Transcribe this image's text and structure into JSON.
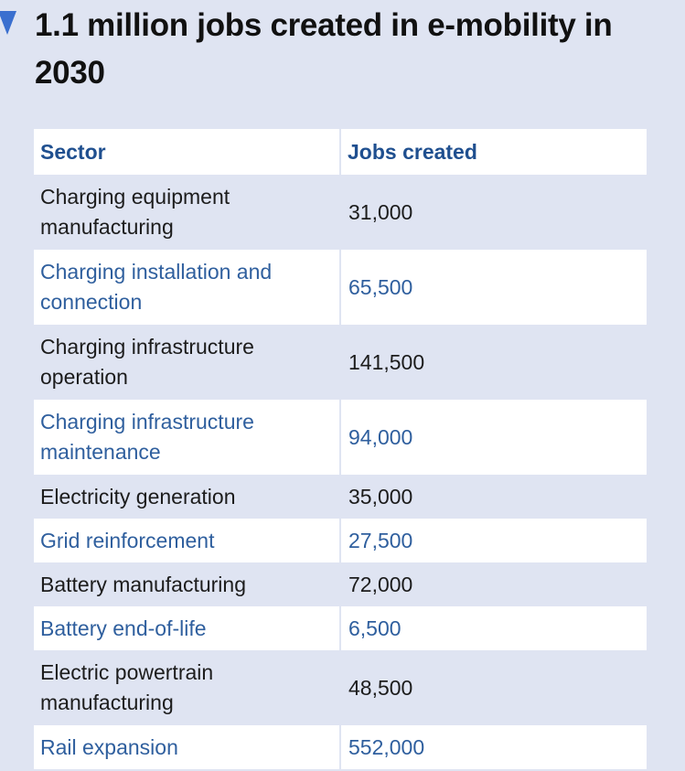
{
  "title": "1.1 million jobs created in e-mobility in 2030",
  "colors": {
    "background": "#dfe4f2",
    "header_text": "#1f4f8f",
    "alt_row_text": "#2f5f9e",
    "marker": "#3a6fcf"
  },
  "chart_data": {
    "type": "table",
    "title": "1.1 million jobs created in e-mobility in 2030",
    "columns": [
      "Sector",
      "Jobs created"
    ],
    "rows": [
      {
        "sector": "Charging equipment manufacturing",
        "jobs": "31,000"
      },
      {
        "sector": "Charging installation and connection",
        "jobs": "65,500"
      },
      {
        "sector": "Charging infrastructure operation",
        "jobs": "141,500"
      },
      {
        "sector": "Charging infrastructure maintenance",
        "jobs": "94,000"
      },
      {
        "sector": "Electricity generation",
        "jobs": "35,000"
      },
      {
        "sector": "Grid reinforcement",
        "jobs": "27,500"
      },
      {
        "sector": "Battery manufacturing",
        "jobs": "72,000"
      },
      {
        "sector": "Battery end-of-life",
        "jobs": "6,500"
      },
      {
        "sector": "Electric powertrain manufacturing",
        "jobs": "48,500"
      },
      {
        "sector": "Rail expansion",
        "jobs": "552,000"
      }
    ]
  }
}
